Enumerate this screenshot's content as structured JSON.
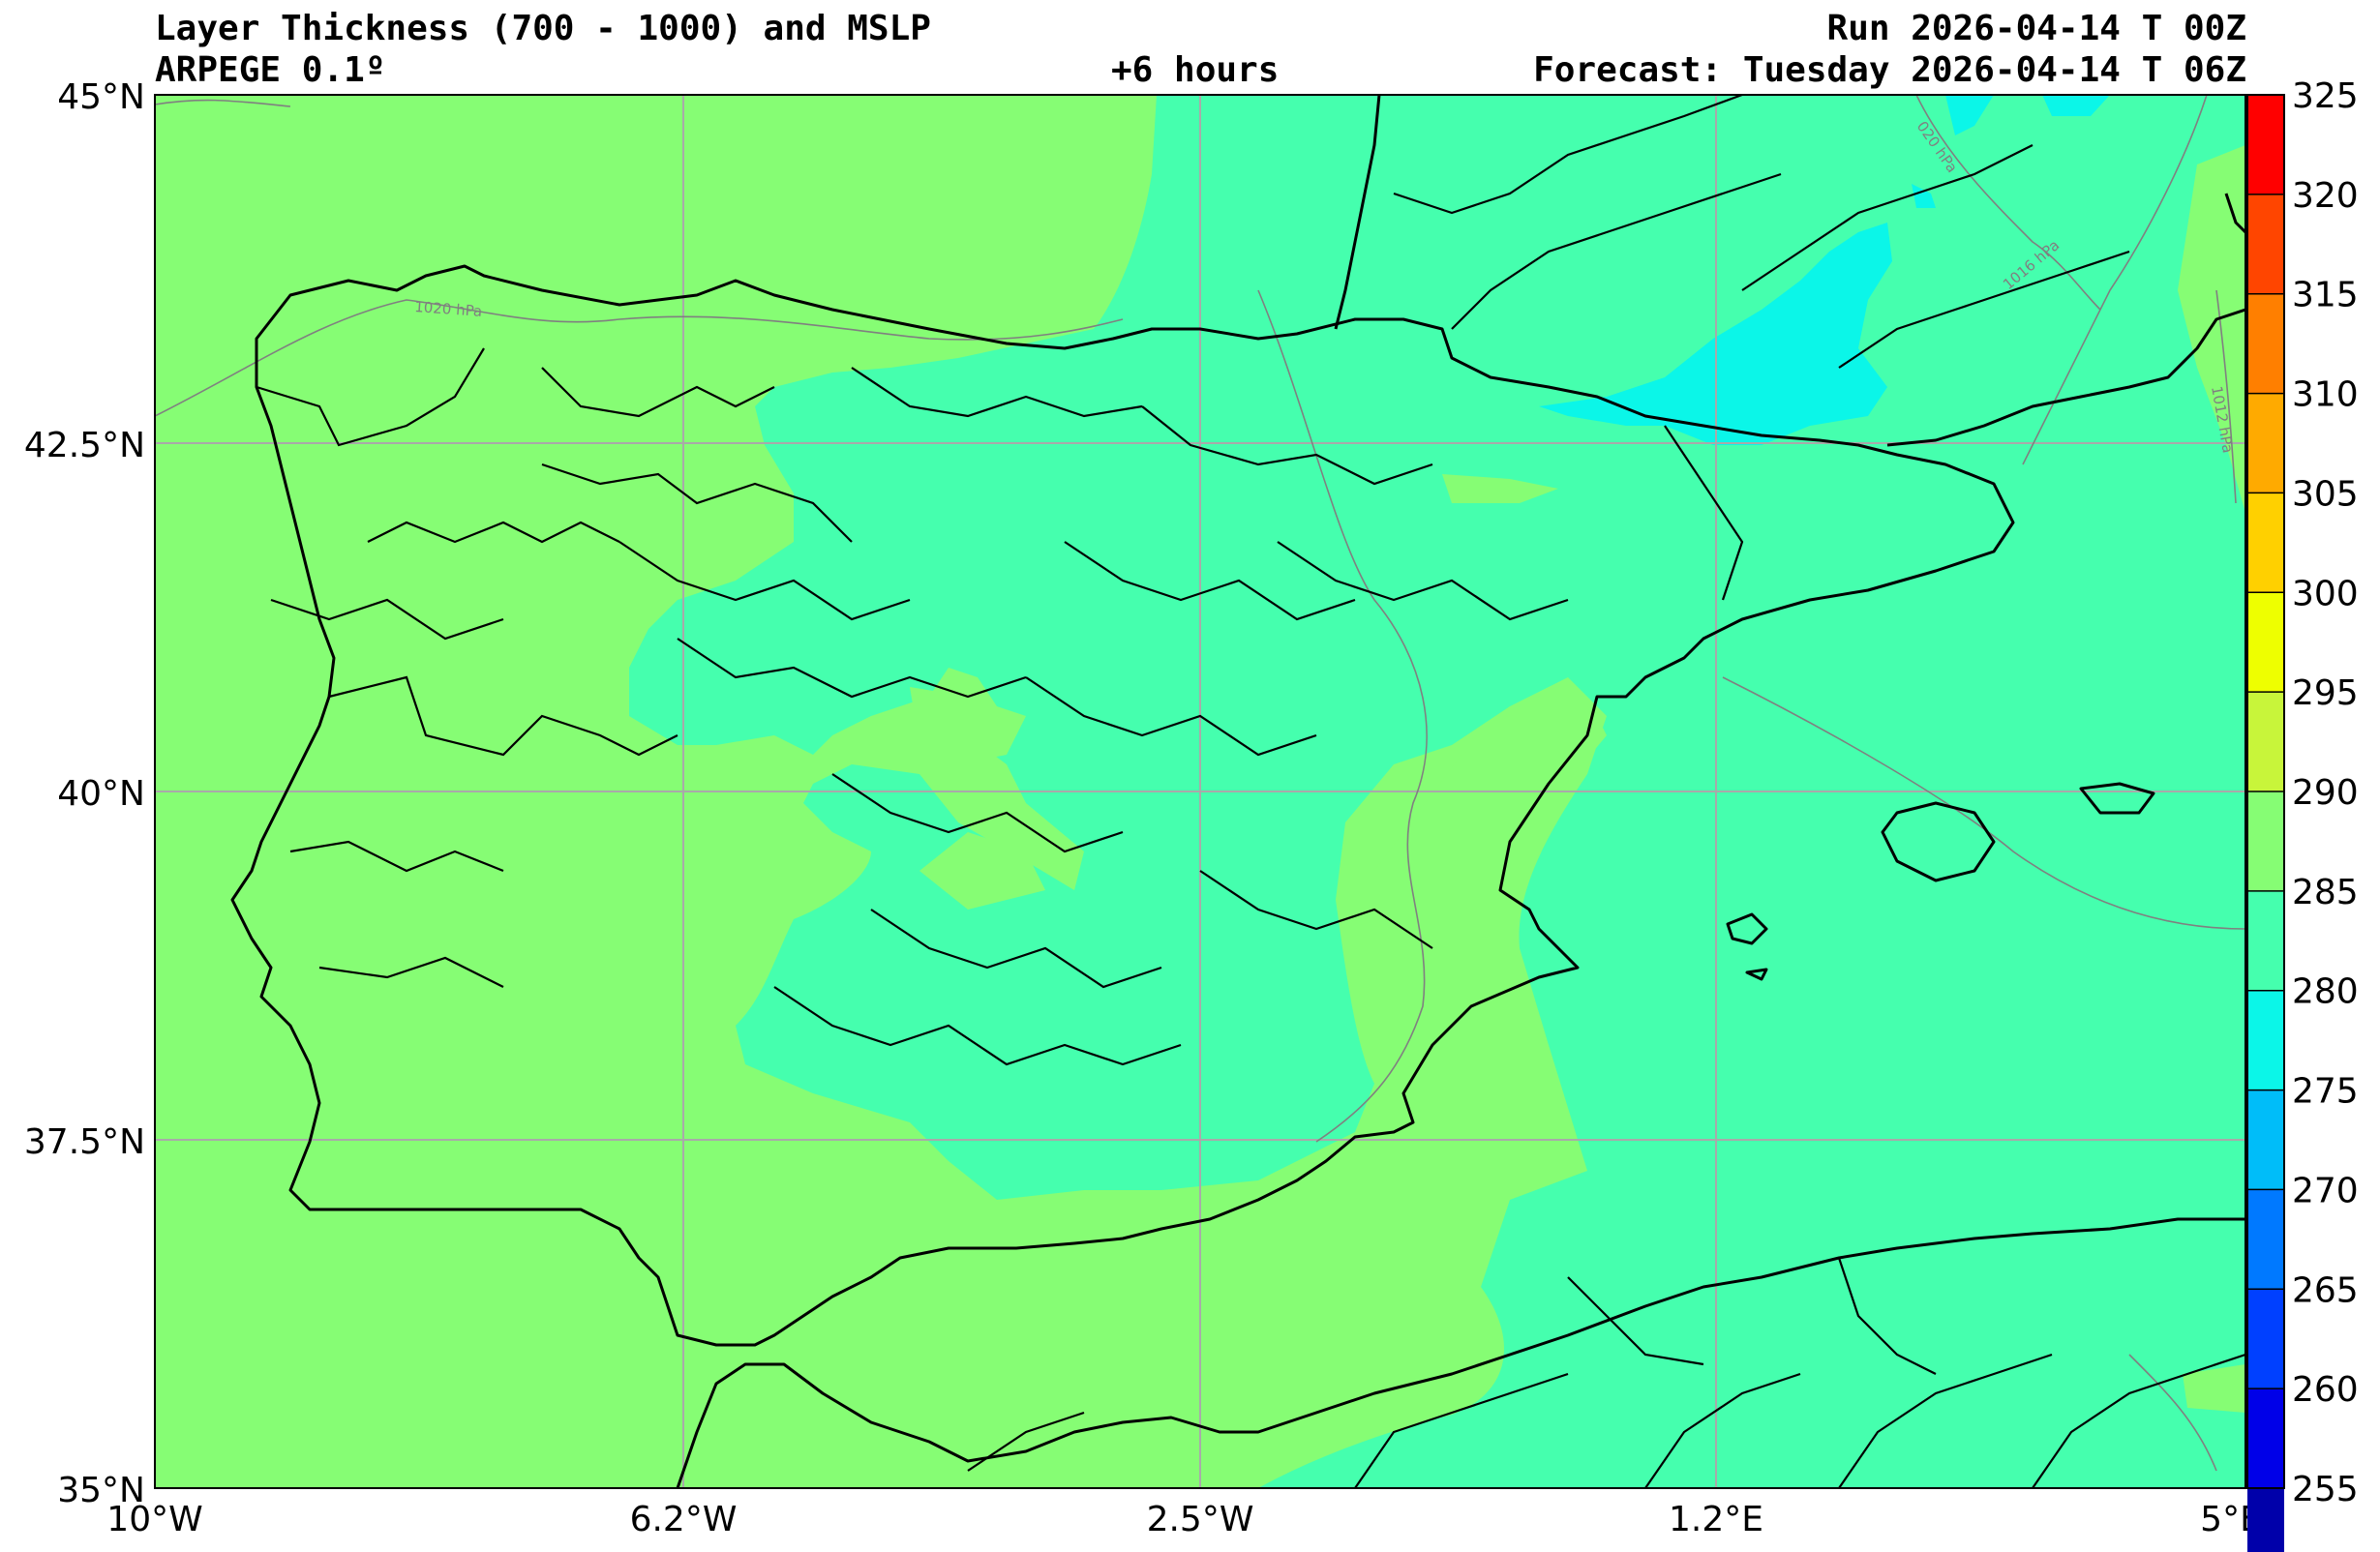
{
  "header": {
    "title": "Layer Thickness (700 - 1000) and MSLP",
    "model": "ARPEGE 0.1º",
    "lead_time": "+6 hours",
    "run": "Run 2026-04-14 T 00Z",
    "forecast": "Forecast: Tuesday 2026-04-14 T 06Z"
  },
  "axes": {
    "lat_labels": [
      "45°N",
      "42.5°N",
      "40°N",
      "37.5°N",
      "35°N"
    ],
    "lon_labels": [
      "10°W",
      "6.2°W",
      "2.5°W",
      "1.2°E",
      "5°E"
    ]
  },
  "colorbar": {
    "ticks": [
      "325",
      "320",
      "315",
      "310",
      "305",
      "300",
      "295",
      "290",
      "285",
      "280",
      "275",
      "270",
      "265",
      "260",
      "255"
    ],
    "colors": [
      "#ff0000",
      "#ff4500",
      "#ff7f00",
      "#ffaa00",
      "#ffd000",
      "#eeff00",
      "#c8f53a",
      "#86fd74",
      "#45ffae",
      "#0bf6e8",
      "#00bdf9",
      "#0079ff",
      "#0040ff",
      "#0000e8",
      "#0000aa"
    ]
  },
  "isobars": [
    "1020 hPa",
    "1016 hPa",
    "1012 hPa",
    "020 hPa"
  ],
  "colors": {
    "field_290_295": "#86fd74",
    "field_285_290": "#45ffae",
    "field_280_285": "#0bf6e8",
    "field_275_280": "#00bdf9",
    "coastline": "#000000",
    "gridline": "#a9a9a9",
    "isobar": "#808080"
  }
}
